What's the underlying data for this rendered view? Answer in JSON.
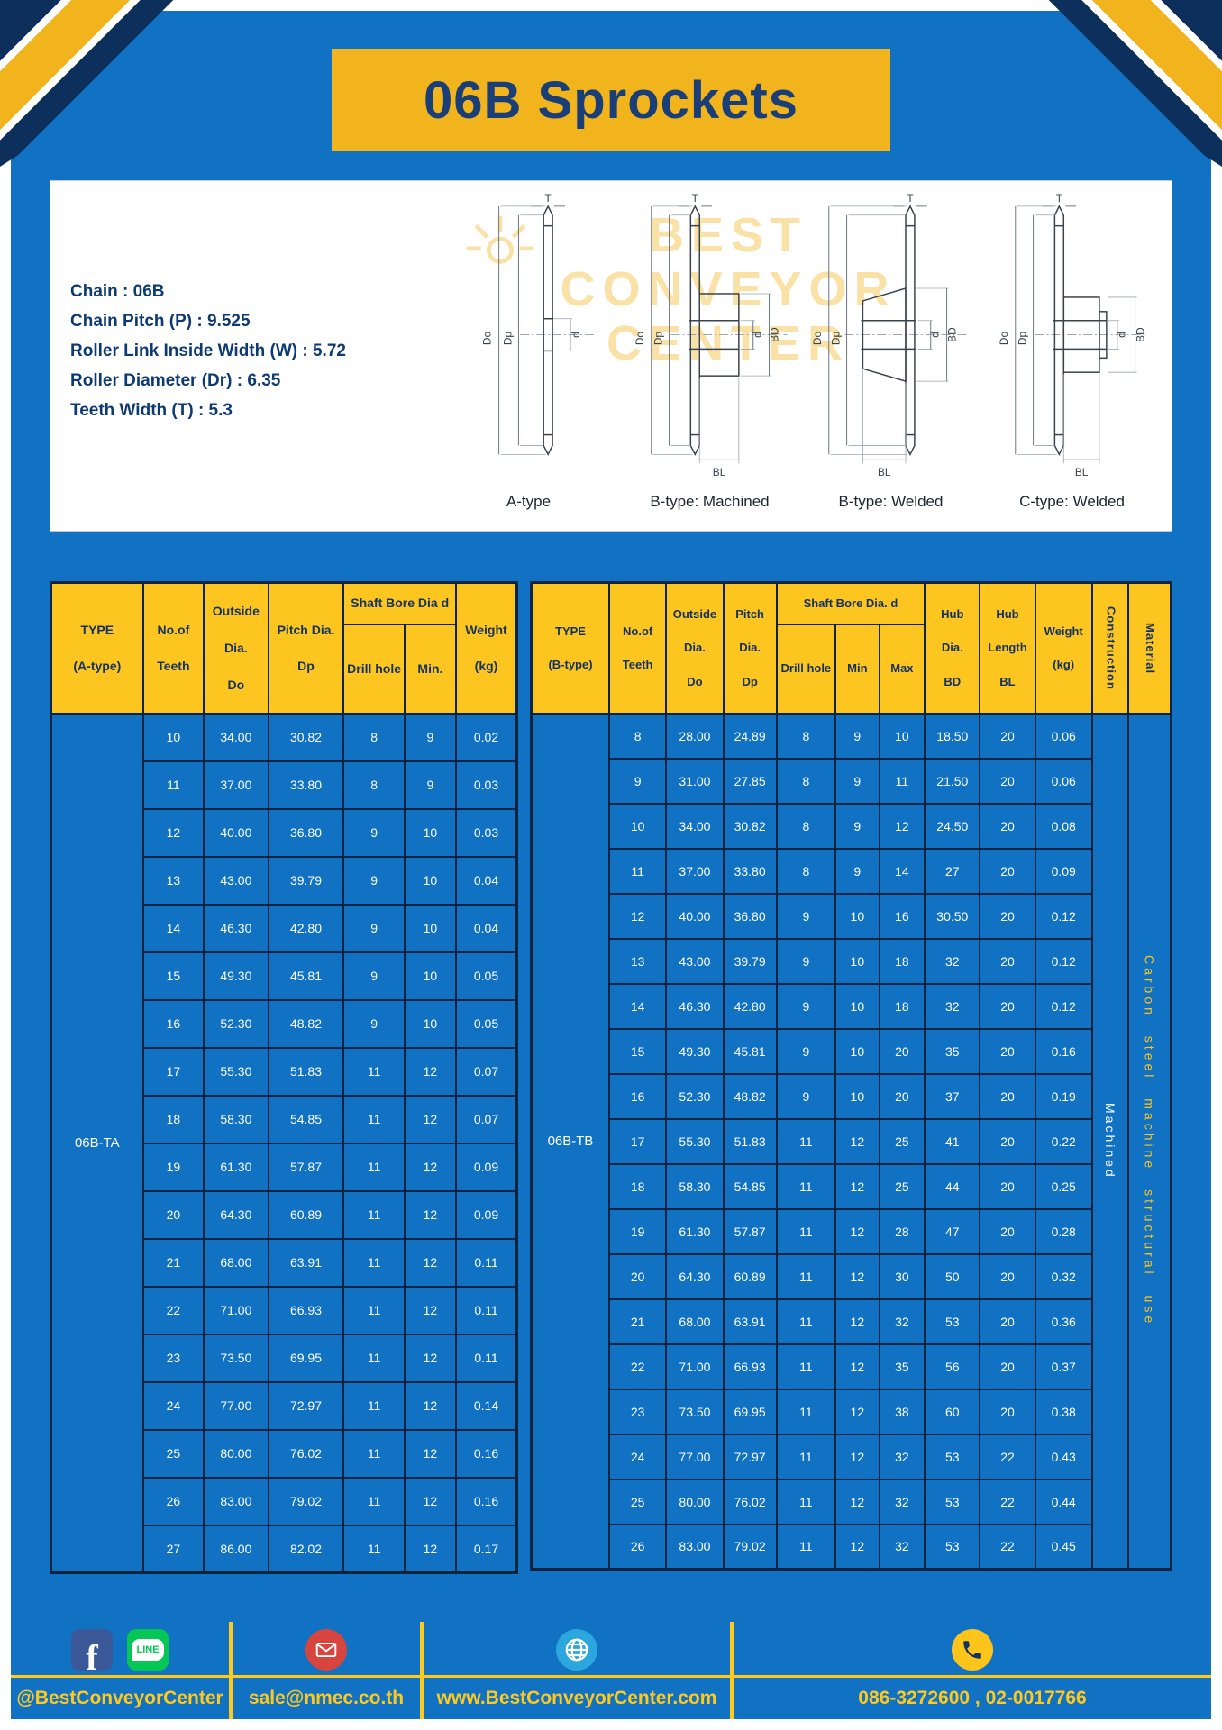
{
  "page": {
    "title": "06B Sprockets"
  },
  "colors": {
    "page-blue": "#1172c3",
    "navy": "#0d2f5c",
    "banner-yellow": "#f2b41d",
    "header-yellow": "#fcc51f",
    "footer-yellow": "#ffc91d",
    "title-navy": "#1a3e78",
    "table-border": "#0d2440",
    "fb-blue": "#3b5998",
    "line-green": "#06c755",
    "mail-red": "#d8453e",
    "globe-blue": "#2ba7de",
    "phone-yellow": "#fdc51c"
  },
  "specs": {
    "lines": [
      "Chain : 06B",
      "Chain Pitch (P) : 9.525",
      "Roller Link Inside Width (W) : 5.72",
      "Roller Diameter (Dr) : 6.35",
      "Teeth Width (T) : 5.3"
    ]
  },
  "diagrams": {
    "watermark": [
      "BEST",
      "CONVEYOR",
      "CENTER"
    ],
    "dims": {
      "t": "T",
      "do": "Do",
      "dp": "Dp",
      "d": "d",
      "bd": "BD",
      "bl": "BL"
    },
    "items": [
      {
        "label": "A-type"
      },
      {
        "label": "B-type: Machined"
      },
      {
        "label": "B-type: Welded"
      },
      {
        "label": "C-type: Welded"
      }
    ]
  },
  "table_a": {
    "head_top": [
      {
        "name": "col-type",
        "rowspan": 2,
        "lines": [
          "TYPE",
          "(A-type)"
        ]
      },
      {
        "name": "col-no-of-teeth",
        "rowspan": 2,
        "lines": [
          "No.of",
          "Teeth"
        ]
      },
      {
        "name": "col-outside-dia",
        "rowspan": 2,
        "lines": [
          "Outside",
          "Dia.",
          "Do"
        ]
      },
      {
        "name": "col-pitch-dia",
        "rowspan": 2,
        "lines": [
          "Pitch Dia.",
          "Dp"
        ]
      },
      {
        "name": "col-shaft-bore",
        "colspan": 2,
        "lines": [
          "Shaft Bore Dia d"
        ]
      },
      {
        "name": "col-weight",
        "rowspan": 2,
        "lines": [
          "Weight",
          "(kg)"
        ]
      }
    ],
    "head_sub": [
      "Drill hole",
      "Min."
    ],
    "type_label": "06B-TA",
    "rows": [
      [
        "10",
        "34.00",
        "30.82",
        "8",
        "9",
        "0.02"
      ],
      [
        "11",
        "37.00",
        "33.80",
        "8",
        "9",
        "0.03"
      ],
      [
        "12",
        "40.00",
        "36.80",
        "9",
        "10",
        "0.03"
      ],
      [
        "13",
        "43.00",
        "39.79",
        "9",
        "10",
        "0.04"
      ],
      [
        "14",
        "46.30",
        "42.80",
        "9",
        "10",
        "0.04"
      ],
      [
        "15",
        "49.30",
        "45.81",
        "9",
        "10",
        "0.05"
      ],
      [
        "16",
        "52.30",
        "48.82",
        "9",
        "10",
        "0.05"
      ],
      [
        "17",
        "55.30",
        "51.83",
        "11",
        "12",
        "0.07"
      ],
      [
        "18",
        "58.30",
        "54.85",
        "11",
        "12",
        "0.07"
      ],
      [
        "19",
        "61.30",
        "57.87",
        "11",
        "12",
        "0.09"
      ],
      [
        "20",
        "64.30",
        "60.89",
        "11",
        "12",
        "0.09"
      ],
      [
        "21",
        "68.00",
        "63.91",
        "11",
        "12",
        "0.11"
      ],
      [
        "22",
        "71.00",
        "66.93",
        "11",
        "12",
        "0.11"
      ],
      [
        "23",
        "73.50",
        "69.95",
        "11",
        "12",
        "0.11"
      ],
      [
        "24",
        "77.00",
        "72.97",
        "11",
        "12",
        "0.14"
      ],
      [
        "25",
        "80.00",
        "76.02",
        "11",
        "12",
        "0.16"
      ],
      [
        "26",
        "83.00",
        "79.02",
        "11",
        "12",
        "0.16"
      ],
      [
        "27",
        "86.00",
        "82.02",
        "11",
        "12",
        "0.17"
      ]
    ]
  },
  "table_b": {
    "head_top": [
      {
        "name": "col-type",
        "rowspan": 2,
        "lines": [
          "TYPE",
          "(B-type)"
        ]
      },
      {
        "name": "col-no-of-teeth",
        "rowspan": 2,
        "lines": [
          "No.of",
          "Teeth"
        ]
      },
      {
        "name": "col-outside-dia",
        "rowspan": 2,
        "lines": [
          "Outside",
          "Dia.",
          "Do"
        ]
      },
      {
        "name": "col-pitch-dia",
        "rowspan": 2,
        "lines": [
          "Pitch",
          "Dia.",
          "Dp"
        ]
      },
      {
        "name": "col-shaft-bore",
        "colspan": 3,
        "lines": [
          "Shaft Bore Dia. d"
        ]
      },
      {
        "name": "col-hub-dia",
        "rowspan": 2,
        "lines": [
          "Hub",
          "Dia.",
          "BD"
        ]
      },
      {
        "name": "col-hub-length",
        "rowspan": 2,
        "lines": [
          "Hub",
          "Length",
          "BL"
        ]
      },
      {
        "name": "col-weight",
        "rowspan": 2,
        "lines": [
          "Weight",
          "(kg)"
        ]
      },
      {
        "name": "col-construction",
        "rowspan": 2,
        "vert": true,
        "lines": [
          "Construction"
        ]
      },
      {
        "name": "col-material",
        "rowspan": 2,
        "vert": true,
        "lines": [
          "Material"
        ]
      }
    ],
    "head_sub": [
      "Drill hole",
      "Min",
      "Max"
    ],
    "type_label": "06B-TB",
    "merged_tail": [
      {
        "name": "construction-value",
        "class": "td-vert",
        "text": "Machined"
      },
      {
        "name": "material-value",
        "class": "td-vert material",
        "text": "Carbon steel machine structural use"
      }
    ],
    "rows": [
      [
        "8",
        "28.00",
        "24.89",
        "8",
        "9",
        "10",
        "18.50",
        "20",
        "0.06"
      ],
      [
        "9",
        "31.00",
        "27.85",
        "8",
        "9",
        "11",
        "21.50",
        "20",
        "0.06"
      ],
      [
        "10",
        "34.00",
        "30.82",
        "8",
        "9",
        "12",
        "24.50",
        "20",
        "0.08"
      ],
      [
        "11",
        "37.00",
        "33.80",
        "8",
        "9",
        "14",
        "27",
        "20",
        "0.09"
      ],
      [
        "12",
        "40.00",
        "36.80",
        "9",
        "10",
        "16",
        "30.50",
        "20",
        "0.12"
      ],
      [
        "13",
        "43.00",
        "39.79",
        "9",
        "10",
        "18",
        "32",
        "20",
        "0.12"
      ],
      [
        "14",
        "46.30",
        "42.80",
        "9",
        "10",
        "18",
        "32",
        "20",
        "0.12"
      ],
      [
        "15",
        "49.30",
        "45.81",
        "9",
        "10",
        "20",
        "35",
        "20",
        "0.16"
      ],
      [
        "16",
        "52.30",
        "48.82",
        "9",
        "10",
        "20",
        "37",
        "20",
        "0.19"
      ],
      [
        "17",
        "55.30",
        "51.83",
        "11",
        "12",
        "25",
        "41",
        "20",
        "0.22"
      ],
      [
        "18",
        "58.30",
        "54.85",
        "11",
        "12",
        "25",
        "44",
        "20",
        "0.25"
      ],
      [
        "19",
        "61.30",
        "57.87",
        "11",
        "12",
        "28",
        "47",
        "20",
        "0.28"
      ],
      [
        "20",
        "64.30",
        "60.89",
        "11",
        "12",
        "30",
        "50",
        "20",
        "0.32"
      ],
      [
        "21",
        "68.00",
        "63.91",
        "11",
        "12",
        "32",
        "53",
        "20",
        "0.36"
      ],
      [
        "22",
        "71.00",
        "66.93",
        "11",
        "12",
        "35",
        "56",
        "20",
        "0.37"
      ],
      [
        "23",
        "73.50",
        "69.95",
        "11",
        "12",
        "38",
        "60",
        "20",
        "0.38"
      ],
      [
        "24",
        "77.00",
        "72.97",
        "11",
        "12",
        "32",
        "53",
        "22",
        "0.43"
      ],
      [
        "25",
        "80.00",
        "76.02",
        "11",
        "12",
        "32",
        "53",
        "22",
        "0.44"
      ],
      [
        "26",
        "83.00",
        "79.02",
        "11",
        "12",
        "32",
        "53",
        "22",
        "0.45"
      ]
    ]
  },
  "footer": {
    "social": "@BestConveyorCenter",
    "email": "sale@nmec.co.th",
    "website": "www.BestConveyorCenter.com",
    "phone": "086-3272600 , 02-0017766",
    "facebook_letter": "f",
    "line_label": "LINE"
  }
}
